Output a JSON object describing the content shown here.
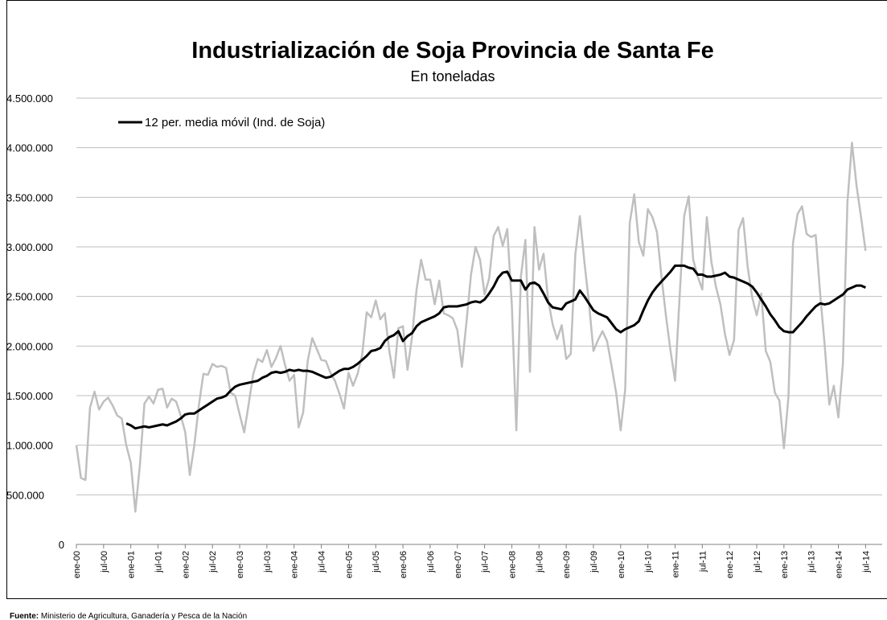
{
  "chart_data": {
    "type": "line",
    "title": "Industrialización de Soja Provincia de Santa Fe",
    "subtitle": "En toneladas",
    "source_label": "Fuente:",
    "source": "Ministerio de Agricultura, Ganadería y Pesca de la Nación",
    "categories": [
      "ene-00",
      null,
      null,
      null,
      null,
      null,
      "jul-00",
      null,
      null,
      null,
      null,
      null,
      "ene-01",
      null,
      null,
      null,
      null,
      null,
      "jul-01",
      null,
      null,
      null,
      null,
      null,
      "ene-02",
      null,
      null,
      null,
      null,
      null,
      "jul-02",
      null,
      null,
      null,
      null,
      null,
      "ene-03",
      null,
      null,
      null,
      null,
      null,
      "jul-03",
      null,
      null,
      null,
      null,
      null,
      "ene-04",
      null,
      null,
      null,
      null,
      null,
      "jul-04",
      null,
      null,
      null,
      null,
      null,
      "ene-05",
      null,
      null,
      null,
      null,
      null,
      "jul-05",
      null,
      null,
      null,
      null,
      null,
      "ene-06",
      null,
      null,
      null,
      null,
      null,
      "jul-06",
      null,
      null,
      null,
      null,
      null,
      "ene-07",
      null,
      null,
      null,
      null,
      null,
      "jul-07",
      null,
      null,
      null,
      null,
      null,
      "ene-08",
      null,
      null,
      null,
      null,
      null,
      "jul-08",
      null,
      null,
      null,
      null,
      null,
      "ene-09",
      null,
      null,
      null,
      null,
      null,
      "jul-09",
      null,
      null,
      null,
      null,
      null,
      "ene-10",
      null,
      null,
      null,
      null,
      null,
      "jul-10",
      null,
      null,
      null,
      null,
      null,
      "ene-11",
      null,
      null,
      null,
      null,
      null,
      "jul-11",
      null,
      null,
      null,
      null,
      null,
      "ene-12",
      null,
      null,
      null,
      null,
      null,
      "jul-12",
      null,
      null,
      null,
      null,
      null,
      "ene-13",
      null,
      null,
      null,
      null,
      null,
      "jul-13",
      null,
      null,
      null,
      null,
      null,
      "ene-14",
      null,
      null,
      null,
      null,
      null,
      "jul-14"
    ],
    "series": [
      {
        "color": "#bfbfbf",
        "values": [
          1000000,
          670000,
          650000,
          1380000,
          1540000,
          1360000,
          1440000,
          1480000,
          1400000,
          1300000,
          1270000,
          1000000,
          820000,
          330000,
          800000,
          1420000,
          1490000,
          1420000,
          1560000,
          1570000,
          1380000,
          1470000,
          1440000,
          1300000,
          1130000,
          700000,
          1000000,
          1400000,
          1720000,
          1710000,
          1820000,
          1790000,
          1800000,
          1780000,
          1530000,
          1500000,
          1310000,
          1130000,
          1420000,
          1720000,
          1870000,
          1840000,
          1960000,
          1790000,
          1880000,
          2000000,
          1810000,
          1650000,
          1710000,
          1180000,
          1330000,
          1850000,
          2080000,
          1970000,
          1860000,
          1850000,
          1730000,
          1650000,
          1520000,
          1370000,
          1730000,
          1600000,
          1720000,
          1910000,
          2340000,
          2290000,
          2460000,
          2270000,
          2330000,
          1950000,
          1680000,
          2180000,
          2200000,
          1760000,
          2090000,
          2570000,
          2870000,
          2670000,
          2670000,
          2420000,
          2660000,
          2330000,
          2310000,
          2280000,
          2160000,
          1790000,
          2240000,
          2720000,
          3000000,
          2870000,
          2520000,
          2680000,
          3110000,
          3200000,
          3010000,
          3180000,
          2420000,
          1150000,
          2700000,
          3070000,
          1740000,
          3200000,
          2770000,
          2930000,
          2470000,
          2220000,
          2070000,
          2210000,
          1870000,
          1920000,
          2920000,
          3310000,
          2850000,
          2440000,
          1950000,
          2060000,
          2150000,
          2050000,
          1800000,
          1530000,
          1150000,
          1560000,
          3240000,
          3530000,
          3050000,
          2910000,
          3380000,
          3300000,
          3150000,
          2700000,
          2300000,
          1950000,
          1650000,
          2500000,
          3310000,
          3510000,
          2870000,
          2700000,
          2570000,
          3300000,
          2850000,
          2600000,
          2420000,
          2120000,
          1910000,
          2060000,
          3170000,
          3290000,
          2800000,
          2490000,
          2310000,
          2530000,
          1950000,
          1840000,
          1530000,
          1450000,
          970000,
          1490000,
          3040000,
          3330000,
          3410000,
          3130000,
          3100000,
          3120000,
          2520000,
          2000000,
          1410000,
          1600000,
          1280000,
          1820000,
          3450000,
          4050000,
          3620000,
          3300000,
          2960000
        ]
      },
      {
        "name": "12 per. media móvil (Ind. de Soja)",
        "color": "#000000",
        "values": [
          null,
          null,
          null,
          null,
          null,
          null,
          null,
          null,
          null,
          null,
          null,
          1220000,
          1200000,
          1170000,
          1180000,
          1190000,
          1180000,
          1190000,
          1200000,
          1210000,
          1200000,
          1220000,
          1240000,
          1270000,
          1310000,
          1320000,
          1320000,
          1350000,
          1380000,
          1410000,
          1440000,
          1470000,
          1480000,
          1500000,
          1550000,
          1590000,
          1610000,
          1620000,
          1630000,
          1640000,
          1650000,
          1680000,
          1700000,
          1730000,
          1740000,
          1730000,
          1740000,
          1760000,
          1750000,
          1760000,
          1750000,
          1750000,
          1740000,
          1720000,
          1700000,
          1680000,
          1690000,
          1720000,
          1750000,
          1770000,
          1770000,
          1790000,
          1820000,
          1860000,
          1900000,
          1950000,
          1960000,
          1980000,
          2050000,
          2090000,
          2110000,
          2150000,
          2050000,
          2100000,
          2130000,
          2200000,
          2240000,
          2260000,
          2280000,
          2300000,
          2330000,
          2390000,
          2400000,
          2400000,
          2400000,
          2410000,
          2420000,
          2440000,
          2450000,
          2440000,
          2470000,
          2530000,
          2600000,
          2690000,
          2740000,
          2750000,
          2660000,
          2660000,
          2660000,
          2570000,
          2630000,
          2640000,
          2610000,
          2530000,
          2440000,
          2390000,
          2380000,
          2370000,
          2430000,
          2450000,
          2470000,
          2560000,
          2500000,
          2430000,
          2360000,
          2330000,
          2310000,
          2290000,
          2230000,
          2170000,
          2140000,
          2170000,
          2190000,
          2210000,
          2250000,
          2360000,
          2460000,
          2540000,
          2600000,
          2650000,
          2700000,
          2750000,
          2810000,
          2810000,
          2810000,
          2790000,
          2780000,
          2720000,
          2720000,
          2700000,
          2700000,
          2710000,
          2720000,
          2740000,
          2700000,
          2690000,
          2670000,
          2650000,
          2630000,
          2600000,
          2540000,
          2470000,
          2400000,
          2320000,
          2260000,
          2190000,
          2150000,
          2140000,
          2140000,
          2190000,
          2240000,
          2300000,
          2350000,
          2400000,
          2430000,
          2420000,
          2430000,
          2460000,
          2490000,
          2520000,
          2570000,
          2590000,
          2610000,
          2610000,
          2590000
        ]
      }
    ],
    "ylim": [
      0,
      4500000
    ],
    "yticks": [
      0,
      {
        "value": 500000,
        "label": "500.000"
      },
      {
        "value": 1000000,
        "label": "1.000.000"
      },
      {
        "value": 1500000,
        "label": "1.500.000"
      },
      {
        "value": 2000000,
        "label": "2.000.000"
      },
      {
        "value": 2500000,
        "label": "2.500.000"
      },
      {
        "value": 3000000,
        "label": "3.000.000"
      },
      {
        "value": 3500000,
        "label": "3.500.000"
      },
      {
        "value": 4000000,
        "label": "4.000.000"
      },
      {
        "value": 4500000,
        "label": "4.500.000"
      }
    ],
    "grid": true,
    "legend": "top-left"
  }
}
